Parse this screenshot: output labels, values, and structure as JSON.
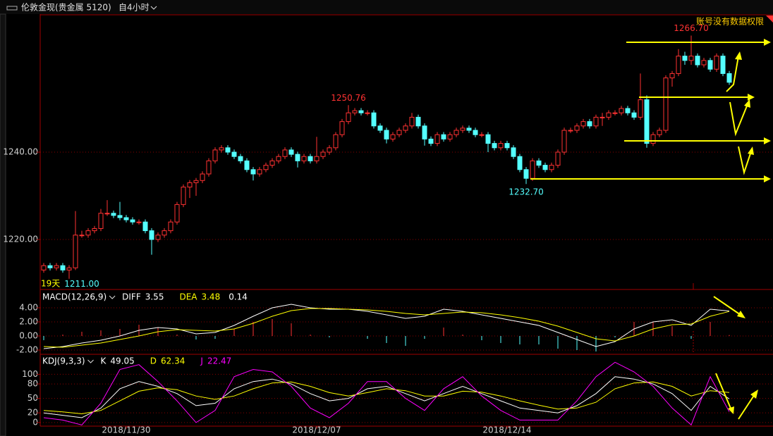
{
  "header": {
    "title": "伦敦金现(贵金属 5120)",
    "period": "自4小时",
    "notice": "账号没有数据权限"
  },
  "period_label": "19天",
  "extreme_labels": [
    "1266.70",
    "1250.76",
    "1232.70",
    "1211.00"
  ],
  "chart_data": [
    {
      "type": "candlestick",
      "categories": [
        null,
        null,
        null,
        null,
        null,
        null,
        null,
        null,
        null,
        null,
        null,
        null,
        null,
        "2018/11/30",
        null,
        null,
        null,
        null,
        null,
        null,
        null,
        null,
        null,
        null,
        null,
        null,
        null,
        null,
        null,
        null,
        null,
        null,
        null,
        null,
        null,
        null,
        null,
        null,
        null,
        null,
        null,
        null,
        null,
        "2018/12/07",
        null,
        null,
        null,
        null,
        null,
        null,
        null,
        null,
        null,
        null,
        null,
        null,
        null,
        null,
        null,
        null,
        null,
        null,
        null,
        null,
        null,
        null,
        null,
        null,
        null,
        null,
        null,
        null,
        null,
        "2018/12/14",
        null,
        null,
        null,
        null,
        null,
        null,
        null,
        null,
        null,
        null,
        null,
        null,
        null,
        null,
        null,
        null,
        null,
        null,
        null,
        null,
        null,
        null,
        null,
        null,
        null,
        null,
        null,
        null,
        null,
        null,
        null,
        null,
        null,
        null,
        null,
        null,
        null
      ],
      "ohlc": [
        [
          1213,
          1214.6,
          1212.4,
          1214
        ],
        [
          1214,
          1214.6,
          1212.9,
          1213.5
        ],
        [
          1213.5,
          1214.6,
          1212.9,
          1214
        ],
        [
          1214,
          1214.6,
          1212.4,
          1213
        ],
        [
          1213,
          1214.1,
          1211,
          1213.5
        ],
        [
          1213.5,
          1226.5,
          1213,
          1221
        ],
        [
          1221,
          1222,
          1220.4,
          1221
        ],
        [
          1221,
          1222.6,
          1220.4,
          1222
        ],
        [
          1222,
          1223.1,
          1221.4,
          1222.5
        ],
        [
          1222.5,
          1227,
          1221.9,
          1226
        ],
        [
          1226,
          1229,
          1225.4,
          1226
        ],
        [
          1226,
          1226.6,
          1224.9,
          1225.5
        ],
        [
          1225.5,
          1228.6,
          1224.4,
          1225
        ],
        [
          1225,
          1225.6,
          1223.9,
          1224.5
        ],
        [
          1224.5,
          1225.1,
          1223.4,
          1224
        ],
        [
          1224,
          1224.6,
          1223.4,
          1224
        ],
        [
          1224,
          1224.6,
          1221.4,
          1222
        ],
        [
          1222,
          1222.6,
          1216.5,
          1220
        ],
        [
          1220,
          1221.6,
          1219.4,
          1221
        ],
        [
          1221,
          1222.6,
          1220.4,
          1222
        ],
        [
          1222,
          1224.6,
          1221.4,
          1224
        ],
        [
          1224,
          1228.6,
          1223.4,
          1228
        ],
        [
          1228,
          1232.6,
          1227.4,
          1232
        ],
        [
          1232,
          1233.6,
          1229.5,
          1233
        ],
        [
          1233,
          1234.1,
          1230,
          1233.5
        ],
        [
          1233.5,
          1235.6,
          1232.9,
          1235
        ],
        [
          1235,
          1238.6,
          1234.4,
          1238
        ],
        [
          1238,
          1241.1,
          1237.4,
          1240.5
        ],
        [
          1240.5,
          1241.6,
          1239.9,
          1241
        ],
        [
          1241,
          1241.6,
          1239.4,
          1240
        ],
        [
          1240,
          1240.6,
          1238.4,
          1239
        ],
        [
          1239,
          1239.6,
          1237.4,
          1238
        ],
        [
          1238,
          1238.6,
          1235.4,
          1236
        ],
        [
          1236,
          1236.6,
          1233.5,
          1235
        ],
        [
          1235,
          1236.6,
          1234.4,
          1236
        ],
        [
          1236,
          1237.6,
          1235.4,
          1237
        ],
        [
          1237,
          1238.6,
          1236.4,
          1238
        ],
        [
          1238,
          1239.6,
          1237.4,
          1239
        ],
        [
          1239,
          1241.1,
          1238.4,
          1240.5
        ],
        [
          1240.5,
          1241.1,
          1238.9,
          1239.5
        ],
        [
          1239.5,
          1240.1,
          1236.5,
          1238
        ],
        [
          1238,
          1239.6,
          1237.4,
          1239
        ],
        [
          1239,
          1239.6,
          1237.4,
          1238
        ],
        [
          1238,
          1243.5,
          1237.4,
          1239
        ],
        [
          1239,
          1240.6,
          1238.4,
          1240
        ],
        [
          1240,
          1241.6,
          1239.4,
          1241
        ],
        [
          1241,
          1244.6,
          1240.4,
          1244
        ],
        [
          1244,
          1247.6,
          1243.4,
          1247
        ],
        [
          1247,
          1250.76,
          1246.4,
          1249
        ],
        [
          1249,
          1250.1,
          1248.4,
          1249.5
        ],
        [
          1249.5,
          1250.1,
          1248.4,
          1249
        ],
        [
          1249,
          1249.6,
          1248.4,
          1249
        ],
        [
          1249,
          1249.6,
          1245.4,
          1246
        ],
        [
          1246,
          1246.6,
          1244.4,
          1245
        ],
        [
          1245,
          1245.6,
          1242,
          1243
        ],
        [
          1243,
          1244.6,
          1242.4,
          1244
        ],
        [
          1244,
          1245.6,
          1243.4,
          1245
        ],
        [
          1245,
          1246.6,
          1244.4,
          1246
        ],
        [
          1246,
          1249,
          1245.4,
          1248
        ],
        [
          1248,
          1248.6,
          1245.4,
          1246
        ],
        [
          1246,
          1246.6,
          1241.5,
          1243
        ],
        [
          1243,
          1243.6,
          1241.4,
          1242
        ],
        [
          1242,
          1244.6,
          1241.4,
          1244
        ],
        [
          1244,
          1244.6,
          1242.4,
          1243
        ],
        [
          1243,
          1244.6,
          1242.4,
          1244
        ],
        [
          1244,
          1245.6,
          1243.4,
          1245
        ],
        [
          1245,
          1246.1,
          1244.4,
          1245.5
        ],
        [
          1245.5,
          1246.1,
          1244.4,
          1245
        ],
        [
          1245,
          1245.6,
          1243.4,
          1244
        ],
        [
          1244,
          1244.6,
          1243.4,
          1244
        ],
        [
          1244,
          1244.6,
          1240,
          1242
        ],
        [
          1242,
          1242.6,
          1240.4,
          1241
        ],
        [
          1241,
          1242.6,
          1240.4,
          1242
        ],
        [
          1242,
          1242.6,
          1240.4,
          1241
        ],
        [
          1241,
          1241.6,
          1238.4,
          1239
        ],
        [
          1239,
          1239.6,
          1235.4,
          1236
        ],
        [
          1236,
          1236.6,
          1232.7,
          1234
        ],
        [
          1234,
          1238.6,
          1233.4,
          1238
        ],
        [
          1238,
          1238.6,
          1236.4,
          1237
        ],
        [
          1237,
          1237.6,
          1235.4,
          1236
        ],
        [
          1236,
          1237.6,
          1235.4,
          1237
        ],
        [
          1237,
          1240.6,
          1236.4,
          1240
        ],
        [
          1240,
          1245.6,
          1239.4,
          1245
        ],
        [
          1245,
          1245.6,
          1244.4,
          1245
        ],
        [
          1245,
          1246.6,
          1244.4,
          1246
        ],
        [
          1246,
          1247.6,
          1245.4,
          1247
        ],
        [
          1247,
          1247.6,
          1245.4,
          1246
        ],
        [
          1246,
          1248.6,
          1245.4,
          1248
        ],
        [
          1248,
          1249,
          1246,
          1248
        ],
        [
          1248,
          1249.6,
          1247.4,
          1249
        ],
        [
          1249,
          1249.6,
          1248.4,
          1249
        ],
        [
          1249,
          1250.6,
          1248.4,
          1250
        ],
        [
          1250,
          1250.6,
          1248.4,
          1249
        ],
        [
          1249,
          1249.6,
          1247.4,
          1248
        ],
        [
          1248,
          1258,
          1247.4,
          1252
        ],
        [
          1252,
          1253,
          1241,
          1242
        ],
        [
          1242,
          1244.6,
          1241.4,
          1244
        ],
        [
          1244,
          1245.6,
          1243.4,
          1245
        ],
        [
          1245,
          1257.6,
          1244.4,
          1257
        ],
        [
          1257,
          1258.6,
          1255,
          1258
        ],
        [
          1258,
          1263.6,
          1257.4,
          1262
        ],
        [
          1262,
          1263,
          1260,
          1261
        ],
        [
          1261,
          1266.7,
          1260,
          1262
        ],
        [
          1262,
          1262.6,
          1259.4,
          1260
        ],
        [
          1260,
          1261.6,
          1259.4,
          1261
        ],
        [
          1261,
          1261.6,
          1258.4,
          1259
        ],
        [
          1259,
          1262.6,
          1258.4,
          1262
        ],
        [
          1262,
          1262.6,
          1257.4,
          1258
        ],
        [
          1258,
          1258.6,
          1255.4,
          1256
        ]
      ],
      "ylim": [
        1208.7,
        1271.3
      ],
      "yticks": [
        {
          "value": 1240,
          "label": "1240.00"
        },
        {
          "value": 1220,
          "label": "1220.00"
        }
      ],
      "up_color": "#ff3232",
      "down_color": "#54ffff",
      "grid": true
    },
    {
      "type": "macd",
      "title": "MACD(12,26,9)",
      "series": [
        {
          "name": "DIFF",
          "color": "#ffffff",
          "values": [
            -1.8,
            -1.5,
            -1,
            -0.6,
            0,
            0.8,
            1.2,
            1,
            0.3,
            0.5,
            1.5,
            2.8,
            4,
            4.5,
            4,
            3.8,
            3.8,
            3.5,
            3,
            2.5,
            2.8,
            3.8,
            3.5,
            3,
            2.5,
            2,
            1.5,
            0.5,
            -0.5,
            -1.5,
            -0.8,
            1,
            2,
            2.3,
            1.5,
            3.8,
            3.55
          ]
        },
        {
          "name": "DEA",
          "color": "#ffff00",
          "values": [
            -1.5,
            -1.6,
            -1.3,
            -1,
            -0.5,
            0,
            0.6,
            0.9,
            0.8,
            0.7,
            1,
            1.8,
            2.8,
            3.6,
            3.9,
            3.9,
            3.8,
            3.7,
            3.5,
            3.2,
            3,
            3.2,
            3.4,
            3.3,
            3,
            2.6,
            2.1,
            1.4,
            0.5,
            -0.4,
            -0.7,
            0,
            1,
            1.6,
            1.7,
            2.8,
            3.48
          ]
        }
      ],
      "values": [
        -0.6,
        0.2,
        0.6,
        0.8,
        1,
        1.6,
        1.2,
        0.2,
        -0.5,
        -0.4,
        1,
        2,
        2.4,
        1.8,
        0.2,
        -0.2,
        0,
        -0.4,
        -1,
        -1.4,
        -0.4,
        1.2,
        0.2,
        -0.6,
        -1,
        -1.2,
        -1.2,
        -1.8,
        -2,
        -2.2,
        -0.2,
        2,
        2,
        1.4,
        -0.4,
        2,
        0.14
      ],
      "up_color": "#ff3232",
      "down_color": "#54ffff",
      "ylim": [
        -2.5,
        6.5
      ],
      "yticks": [
        {
          "value": 4,
          "label": "4.00"
        },
        {
          "value": 2,
          "label": "2.00"
        },
        {
          "value": 0,
          "label": "0.00"
        },
        {
          "value": -2,
          "label": "-2.00"
        }
      ],
      "grid": true
    },
    {
      "type": "kdj",
      "title": "KDJ(9,3,3)",
      "series": [
        {
          "name": "K",
          "color": "#ffffff",
          "values": [
            20,
            15,
            10,
            30,
            70,
            85,
            75,
            60,
            35,
            40,
            70,
            85,
            90,
            80,
            60,
            45,
            50,
            70,
            75,
            60,
            45,
            60,
            75,
            60,
            45,
            30,
            25,
            20,
            35,
            60,
            95,
            90,
            80,
            60,
            25,
            75,
            49.05
          ]
        },
        {
          "name": "D",
          "color": "#ffff00",
          "values": [
            25,
            22,
            18,
            25,
            45,
            65,
            72,
            68,
            55,
            48,
            55,
            70,
            82,
            84,
            75,
            62,
            55,
            62,
            70,
            66,
            55,
            55,
            65,
            63,
            55,
            45,
            36,
            28,
            30,
            42,
            70,
            82,
            84,
            75,
            55,
            66,
            62.34
          ]
        },
        {
          "name": "J",
          "color": "#ff00ff",
          "values": [
            10,
            5,
            -5,
            40,
            110,
            120,
            85,
            45,
            0,
            25,
            95,
            110,
            105,
            75,
            30,
            10,
            40,
            85,
            85,
            50,
            25,
            70,
            95,
            55,
            25,
            5,
            5,
            5,
            45,
            95,
            125,
            105,
            75,
            30,
            -5,
            95,
            22.47
          ]
        }
      ],
      "ylim": [
        -7.5,
        140
      ],
      "yticks": [
        100,
        80,
        50,
        20,
        0
      ],
      "grid": true
    }
  ]
}
